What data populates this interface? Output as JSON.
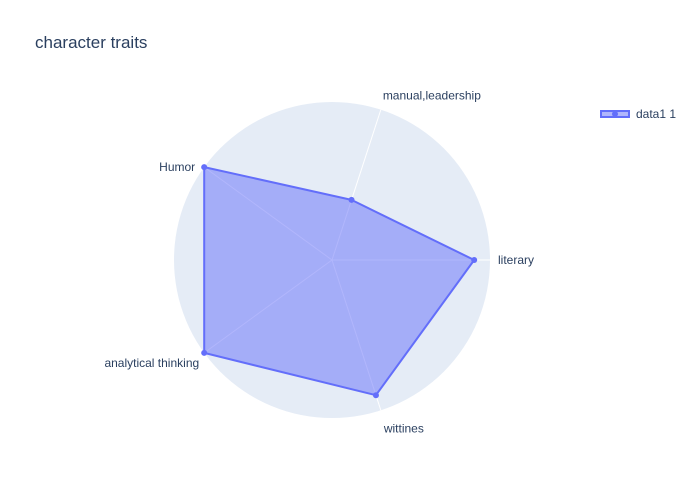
{
  "chart_data": {
    "type": "radar",
    "title": "character traits",
    "categories": [
      "literary",
      "manual,leadership",
      "Humor",
      "analytical thinking",
      "wittines"
    ],
    "series": [
      {
        "name": "data1 1",
        "values": [
          0.9,
          0.4,
          1.0,
          1.0,
          0.9
        ]
      }
    ],
    "range": [
      0,
      1
    ],
    "legend": "top-right",
    "grid": true,
    "colors": {
      "polar_bg": "#e5ecf6",
      "line": "#636efa",
      "fill": "rgba(99,110,250,0.5)",
      "gridline": "#ffffff",
      "text": "#2a3f5f"
    }
  }
}
